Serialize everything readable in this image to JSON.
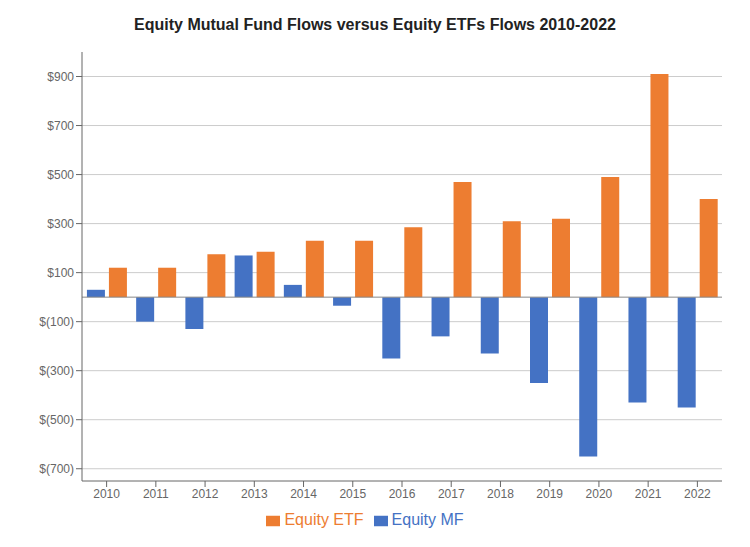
{
  "chart_data": {
    "type": "bar",
    "title": "Equity Mutual Fund Flows versus Equity ETFs Flows 2010-2022",
    "categories": [
      "2010",
      "2011",
      "2012",
      "2013",
      "2014",
      "2015",
      "2016",
      "2017",
      "2018",
      "2019",
      "2020",
      "2021",
      "2022"
    ],
    "series": [
      {
        "name": "Equity MF",
        "color": "#4472C4",
        "values": [
          30,
          -100,
          -130,
          170,
          50,
          -35,
          -250,
          -160,
          -230,
          -350,
          -650,
          -430,
          -450
        ]
      },
      {
        "name": "Equity ETF",
        "color": "#ED7D31",
        "values": [
          120,
          120,
          175,
          185,
          230,
          230,
          285,
          470,
          310,
          320,
          490,
          910,
          400
        ]
      }
    ],
    "ylim": [
      -750,
      1000
    ],
    "yticks": [
      {
        "value": -700,
        "label": "$(700)"
      },
      {
        "value": -500,
        "label": "$(500)"
      },
      {
        "value": -300,
        "label": "$(300)"
      },
      {
        "value": -100,
        "label": "$(100)"
      },
      {
        "value": 100,
        "label": "$100"
      },
      {
        "value": 300,
        "label": "$300"
      },
      {
        "value": 500,
        "label": "$500"
      },
      {
        "value": 700,
        "label": "$700"
      },
      {
        "value": 900,
        "label": "$900"
      }
    ],
    "grid": true,
    "legend": "bottom"
  }
}
